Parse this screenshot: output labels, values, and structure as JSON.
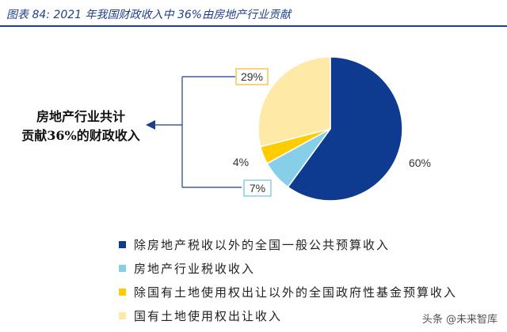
{
  "title": "图表 84:  2021 年我国财政收入中 36%由房地产行业贡献",
  "bracket_label": {
    "line1": "房地产行业共计",
    "line2": "贡献36%的财政收入"
  },
  "watermark": "头条 @未来智库",
  "chart_data": {
    "type": "pie",
    "title": "",
    "slices": [
      {
        "label": "除房地产税收以外的全国一般公共预算收入",
        "value": 60,
        "data_label": "60%",
        "color": "#0e3a8f"
      },
      {
        "label": "房地产行业税收收入",
        "value": 7,
        "data_label": "7%",
        "color": "#87cfe8"
      },
      {
        "label": "除国有土地使用权出让以外的全国政府性基金预算收入",
        "value": 4,
        "data_label": "4%",
        "color": "#ffcc00"
      },
      {
        "label": "国有土地使用权出让收入",
        "value": 29,
        "data_label": "29%",
        "color": "#ffe9a6"
      }
    ],
    "legend_position": "bottom-left"
  }
}
